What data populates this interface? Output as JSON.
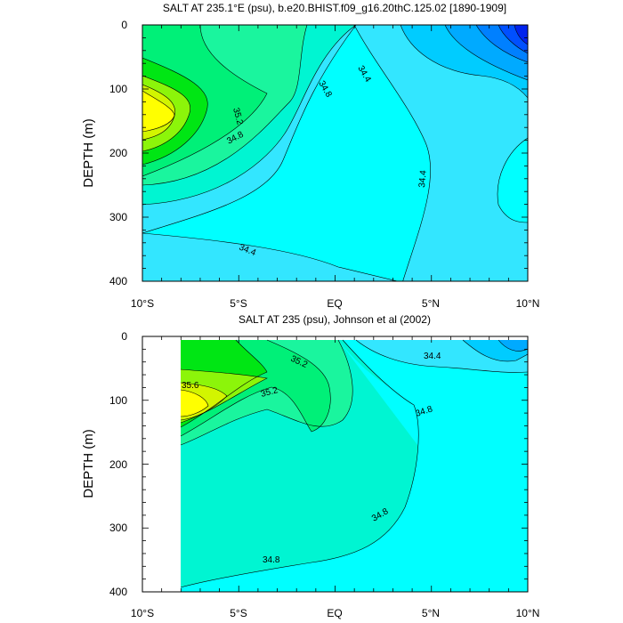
{
  "chart_data": [
    {
      "type": "contour",
      "title": "SALT AT 235.1°E (psu), b.e20.BHIST.f09_g16.20thC.125.02 [1890-1909]",
      "ylabel": "DEPTH (m)",
      "xlim": [
        -10,
        10
      ],
      "ylim": [
        400,
        0
      ],
      "y_ticks": [
        "0",
        "100",
        "200",
        "300",
        "400"
      ],
      "x_ticks": [
        "10°S",
        "5°S",
        "EQ",
        "5°N",
        "10°N"
      ],
      "contour_labels": [
        "35.2",
        "34.8",
        "34.8",
        "34.4",
        "34.4",
        "34.4"
      ],
      "salinity_max_near": {
        "lat": -9,
        "depth": 130
      }
    },
    {
      "type": "contour",
      "title": "SALT AT 235 (psu), Johnson et al (2002)",
      "ylabel": "DEPTH (m)",
      "xlim": [
        -10,
        10
      ],
      "ylim": [
        400,
        0
      ],
      "data_x_range": [
        -8,
        10
      ],
      "y_ticks": [
        "0",
        "100",
        "200",
        "300",
        "400"
      ],
      "x_ticks": [
        "10°S",
        "5°S",
        "EQ",
        "5°N",
        "10°N"
      ],
      "contour_labels": [
        "35.6",
        "35.2",
        "35.2",
        "34.8",
        "34.8",
        "34.8",
        "34.4"
      ],
      "salinity_max_near": {
        "lat": -7.5,
        "depth": 105
      }
    }
  ],
  "colors": {
    "s344": "#33e6ff",
    "s346": "#00ffff",
    "s348": "#00f5d2",
    "s350": "#1af59e",
    "s352": "#00f078",
    "s354": "#00e614",
    "s356": "#8cf50a",
    "s358": "#d2f500",
    "s360": "#ffff00",
    "b1": "#00ccff",
    "b2": "#00aaff",
    "b3": "#0080ff",
    "b4": "#0050ff",
    "b5": "#0022ee"
  }
}
